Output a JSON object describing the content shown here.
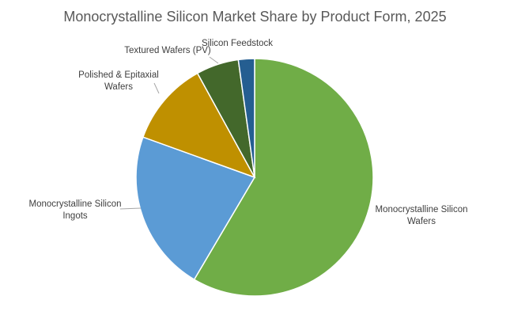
{
  "chart_data": {
    "type": "pie",
    "title": "Monocrystalline Silicon Market Share by Product Form, 2025",
    "start_angle_deg": 0,
    "direction": "clockwise",
    "legend": "none",
    "data_labels": "category names outside slices",
    "slices": [
      {
        "label": "Monocrystalline Silicon Wafers",
        "lines": [
          "Monocrystalline Silicon",
          "Wafers"
        ],
        "value": 58.5,
        "color": "#70AD47"
      },
      {
        "label": "Monocrystalline Silicon Ingots",
        "lines": [
          "Monocrystalline Silicon",
          "Ingots"
        ],
        "value": 22.0,
        "color": "#5B9BD5"
      },
      {
        "label": "Polished & Epitaxial Wafers",
        "lines": [
          "Polished & Epitaxial",
          "Wafers"
        ],
        "value": 11.5,
        "color": "#BF9000"
      },
      {
        "label": "Textured Wafers (PV)",
        "lines": [
          "Textured Wafers (PV)"
        ],
        "value": 5.8,
        "color": "#43682B"
      },
      {
        "label": "Silicon Feedstock",
        "lines": [
          "Silicon Feedstock"
        ],
        "value": 2.2,
        "color": "#255E91"
      }
    ]
  }
}
